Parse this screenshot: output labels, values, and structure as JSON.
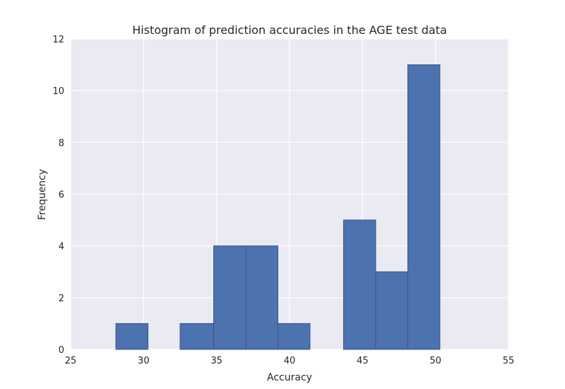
{
  "chart_data": {
    "type": "bar",
    "subtype": "histogram",
    "title": "Histogram of prediction accuracies in the AGE test data",
    "xlabel": "Accuracy",
    "ylabel": "Frequency",
    "xlim": [
      25,
      55
    ],
    "ylim": [
      0,
      12
    ],
    "xticks": [
      25,
      30,
      35,
      40,
      45,
      50,
      55
    ],
    "yticks": [
      0,
      2,
      4,
      6,
      8,
      10,
      12
    ],
    "grid": true,
    "bins": [
      {
        "x0": 28.1,
        "x1": 30.3,
        "count": 1
      },
      {
        "x0": 30.3,
        "x1": 32.5,
        "count": 0
      },
      {
        "x0": 32.5,
        "x1": 34.8,
        "count": 1
      },
      {
        "x0": 34.8,
        "x1": 37.0,
        "count": 4
      },
      {
        "x0": 37.0,
        "x1": 39.2,
        "count": 4
      },
      {
        "x0": 39.2,
        "x1": 41.4,
        "count": 1
      },
      {
        "x0": 41.4,
        "x1": 43.7,
        "count": 0
      },
      {
        "x0": 43.7,
        "x1": 45.9,
        "count": 5
      },
      {
        "x0": 45.9,
        "x1": 48.1,
        "count": 3
      },
      {
        "x0": 48.1,
        "x1": 50.3,
        "count": 11
      }
    ],
    "colors": {
      "background": "#eaeaf2",
      "bar_fill": "#4c72b0",
      "bar_edge": "#3a5680",
      "grid": "#ffffff"
    }
  }
}
